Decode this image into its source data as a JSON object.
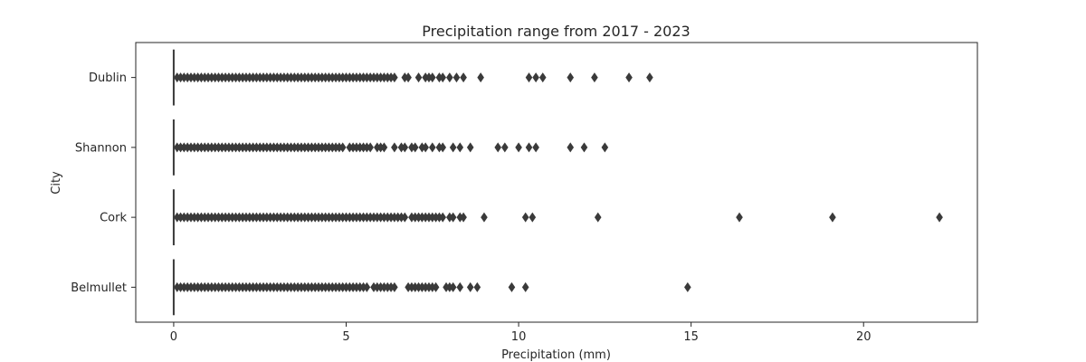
{
  "chart_data": {
    "type": "boxplot",
    "orientation": "horizontal",
    "title": "Precipitation range from 2017 - 2023",
    "xlabel": "Precipitation (mm)",
    "ylabel": "City",
    "xlim": [
      -1.1,
      23.3
    ],
    "xticks": [
      0,
      5,
      10,
      15,
      20
    ],
    "grid": false,
    "categories": [
      "Dublin",
      "Shannon",
      "Cork",
      "Belmullet"
    ],
    "box_color": "#3a3a3a",
    "series": [
      {
        "category": "Dublin",
        "box": {
          "q1": 0,
          "median": 0,
          "q3": 0,
          "whisker_low": 0,
          "whisker_high": 0
        },
        "outliers": [
          0.1,
          0.2,
          0.3,
          0.4,
          0.5,
          0.6,
          0.7,
          0.8,
          0.9,
          1.0,
          1.1,
          1.2,
          1.3,
          1.4,
          1.5,
          1.6,
          1.7,
          1.8,
          1.9,
          2.0,
          2.1,
          2.2,
          2.3,
          2.4,
          2.5,
          2.6,
          2.7,
          2.8,
          2.9,
          3.0,
          3.1,
          3.2,
          3.3,
          3.4,
          3.5,
          3.6,
          3.7,
          3.8,
          3.9,
          4.0,
          4.1,
          4.2,
          4.3,
          4.4,
          4.5,
          4.6,
          4.7,
          4.8,
          4.9,
          5.0,
          5.1,
          5.2,
          5.3,
          5.4,
          5.5,
          5.6,
          5.7,
          5.8,
          5.9,
          6.0,
          6.1,
          6.2,
          6.3,
          6.4,
          6.7,
          6.8,
          7.1,
          7.3,
          7.4,
          7.5,
          7.7,
          7.8,
          8.0,
          8.2,
          8.4,
          8.9,
          10.3,
          10.5,
          10.7,
          11.5,
          12.2,
          13.2,
          13.8
        ]
      },
      {
        "category": "Shannon",
        "box": {
          "q1": 0,
          "median": 0,
          "q3": 0,
          "whisker_low": 0,
          "whisker_high": 0
        },
        "outliers": [
          0.1,
          0.2,
          0.3,
          0.4,
          0.5,
          0.6,
          0.7,
          0.8,
          0.9,
          1.0,
          1.1,
          1.2,
          1.3,
          1.4,
          1.5,
          1.6,
          1.7,
          1.8,
          1.9,
          2.0,
          2.1,
          2.2,
          2.3,
          2.4,
          2.5,
          2.6,
          2.7,
          2.8,
          2.9,
          3.0,
          3.1,
          3.2,
          3.3,
          3.4,
          3.5,
          3.6,
          3.7,
          3.8,
          3.9,
          4.0,
          4.1,
          4.2,
          4.3,
          4.4,
          4.5,
          4.6,
          4.7,
          4.8,
          4.9,
          5.1,
          5.2,
          5.3,
          5.4,
          5.5,
          5.6,
          5.7,
          5.9,
          6.0,
          6.1,
          6.4,
          6.6,
          6.7,
          6.9,
          7.0,
          7.2,
          7.3,
          7.5,
          7.7,
          7.8,
          8.1,
          8.3,
          8.6,
          9.4,
          9.6,
          10.0,
          10.3,
          10.5,
          11.5,
          11.9,
          12.5
        ]
      },
      {
        "category": "Cork",
        "box": {
          "q1": 0,
          "median": 0,
          "q3": 0,
          "whisker_low": 0,
          "whisker_high": 0
        },
        "outliers": [
          0.1,
          0.2,
          0.3,
          0.4,
          0.5,
          0.6,
          0.7,
          0.8,
          0.9,
          1.0,
          1.1,
          1.2,
          1.3,
          1.4,
          1.5,
          1.6,
          1.7,
          1.8,
          1.9,
          2.0,
          2.1,
          2.2,
          2.3,
          2.4,
          2.5,
          2.6,
          2.7,
          2.8,
          2.9,
          3.0,
          3.1,
          3.2,
          3.3,
          3.4,
          3.5,
          3.6,
          3.7,
          3.8,
          3.9,
          4.0,
          4.1,
          4.2,
          4.3,
          4.4,
          4.5,
          4.6,
          4.7,
          4.8,
          4.9,
          5.0,
          5.1,
          5.2,
          5.3,
          5.4,
          5.5,
          5.6,
          5.7,
          5.8,
          5.9,
          6.0,
          6.1,
          6.2,
          6.3,
          6.4,
          6.5,
          6.6,
          6.7,
          6.9,
          7.0,
          7.1,
          7.2,
          7.3,
          7.4,
          7.5,
          7.6,
          7.7,
          7.8,
          8.0,
          8.1,
          8.3,
          8.4,
          9.0,
          10.2,
          10.4,
          12.3,
          16.4,
          19.1,
          22.2
        ]
      },
      {
        "category": "Belmullet",
        "box": {
          "q1": 0,
          "median": 0,
          "q3": 0,
          "whisker_low": 0,
          "whisker_high": 0
        },
        "outliers": [
          0.1,
          0.2,
          0.3,
          0.4,
          0.5,
          0.6,
          0.7,
          0.8,
          0.9,
          1.0,
          1.1,
          1.2,
          1.3,
          1.4,
          1.5,
          1.6,
          1.7,
          1.8,
          1.9,
          2.0,
          2.1,
          2.2,
          2.3,
          2.4,
          2.5,
          2.6,
          2.7,
          2.8,
          2.9,
          3.0,
          3.1,
          3.2,
          3.3,
          3.4,
          3.5,
          3.6,
          3.7,
          3.8,
          3.9,
          4.0,
          4.1,
          4.2,
          4.3,
          4.4,
          4.5,
          4.6,
          4.7,
          4.8,
          4.9,
          5.0,
          5.1,
          5.2,
          5.3,
          5.4,
          5.5,
          5.6,
          5.8,
          5.9,
          6.0,
          6.1,
          6.2,
          6.3,
          6.4,
          6.8,
          6.9,
          7.0,
          7.1,
          7.2,
          7.3,
          7.4,
          7.5,
          7.6,
          7.9,
          8.0,
          8.1,
          8.3,
          8.6,
          8.8,
          9.8,
          10.2,
          14.9
        ]
      }
    ]
  }
}
